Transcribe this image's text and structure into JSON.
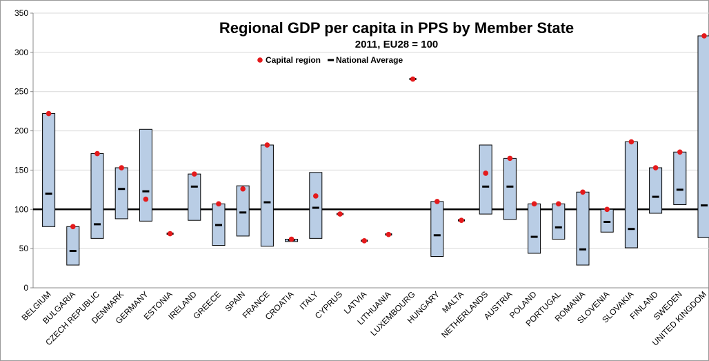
{
  "chart_data": {
    "type": "range",
    "title": "Regional GDP per capita in PPS by Member State",
    "subtitle": "2011, EU28 = 100",
    "categories": [
      "BELGIUM",
      "BULGARIA",
      "CZECH REPUBLIC",
      "DENMARK",
      "GERMANY",
      "ESTONIA",
      "IRELAND",
      "GREECE",
      "SPAIN",
      "FRANCE",
      "CROATIA",
      "ITALY",
      "CYPRUS",
      "LATVIA",
      "LITHUANIA",
      "LUXEMBOURG",
      "HUNGARY",
      "MALTA",
      "NETHERLANDS",
      "AUSTRIA",
      "POLAND",
      "PORTUGAL",
      "ROMANIA",
      "SLOVENIA",
      "SLOVAKIA",
      "FINLAND",
      "SWEDEN",
      "UNITED KINGDOM"
    ],
    "low": [
      78,
      29,
      63,
      88,
      85,
      69,
      86,
      54,
      66,
      53,
      59,
      63,
      94,
      60,
      68,
      266,
      40,
      86,
      94,
      87,
      44,
      62,
      29,
      71,
      51,
      95,
      106,
      64
    ],
    "high": [
      222,
      78,
      171,
      153,
      202,
      69,
      145,
      107,
      130,
      182,
      62,
      147,
      94,
      60,
      68,
      266,
      110,
      86,
      182,
      165,
      107,
      107,
      122,
      100,
      186,
      153,
      173,
      321
    ],
    "range_color": "#b9cde5",
    "series": [
      {
        "name": "Capital region",
        "color": "#e41a1c",
        "values": [
          222,
          78,
          171,
          153,
          113,
          69,
          145,
          107,
          126,
          182,
          62,
          117,
          94,
          60,
          68,
          266,
          110,
          86,
          146,
          165,
          107,
          107,
          122,
          100,
          186,
          153,
          173,
          321
        ]
      },
      {
        "name": "National Average",
        "color": "#000000",
        "values": [
          120,
          47,
          81,
          126,
          123,
          69,
          129,
          80,
          96,
          109,
          61,
          102,
          94,
          60,
          68,
          266,
          67,
          86,
          129,
          129,
          65,
          77,
          49,
          84,
          75,
          116,
          125,
          105
        ]
      }
    ],
    "reference_line": 100,
    "ylim": [
      0,
      350
    ],
    "yticks": [
      0,
      50,
      100,
      150,
      200,
      250,
      300,
      350
    ],
    "grid": true
  }
}
